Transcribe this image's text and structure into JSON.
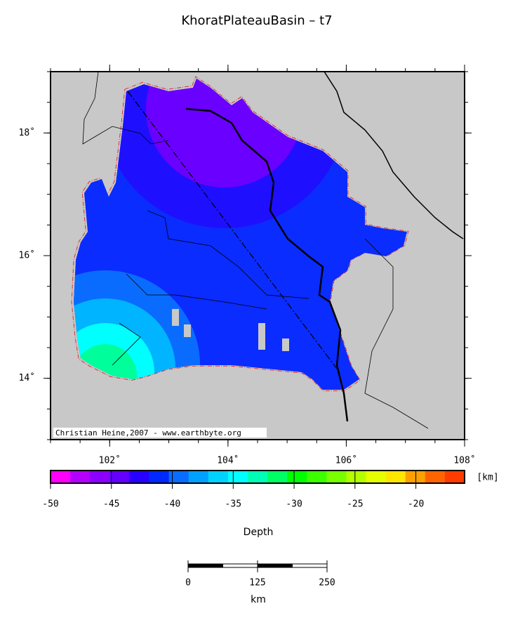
{
  "title": "KhoratPlateauBasin – t7",
  "map": {
    "credit": "Christian Heine,2007 - www.earthbyte.org",
    "xlim": [
      101,
      108
    ],
    "ylim": [
      13,
      19
    ],
    "xticks": [
      {
        "value": 102,
        "label": "102˚"
      },
      {
        "value": 104,
        "label": "104˚"
      },
      {
        "value": 106,
        "label": "106˚"
      },
      {
        "value": 108,
        "label": "108˚"
      }
    ],
    "yticks": [
      {
        "value": 14,
        "label": "14˚"
      },
      {
        "value": 16,
        "label": "16˚"
      },
      {
        "value": 18,
        "label": "18˚"
      }
    ]
  },
  "colorbar": {
    "label": "Depth",
    "unit": "[km]",
    "lim": [
      -50,
      -16
    ],
    "ticks": [
      -50,
      -45,
      -40,
      -35,
      -30,
      -25,
      -20
    ],
    "colors": [
      "#ff00ff",
      "#b400ff",
      "#8c00ff",
      "#6400ff",
      "#2800ff",
      "#0028ff",
      "#0a6cff",
      "#00a0ff",
      "#00d2ff",
      "#00ffff",
      "#00ffb4",
      "#00ff64",
      "#00ff00",
      "#3cff00",
      "#78ff00",
      "#b4ff00",
      "#e6ff00",
      "#ffe600",
      "#ffa000",
      "#ff6400",
      "#ff3c00"
    ]
  },
  "scalebar": {
    "unit": "km",
    "lim": [
      0,
      250
    ],
    "ticks": [
      0,
      125,
      250
    ]
  }
}
